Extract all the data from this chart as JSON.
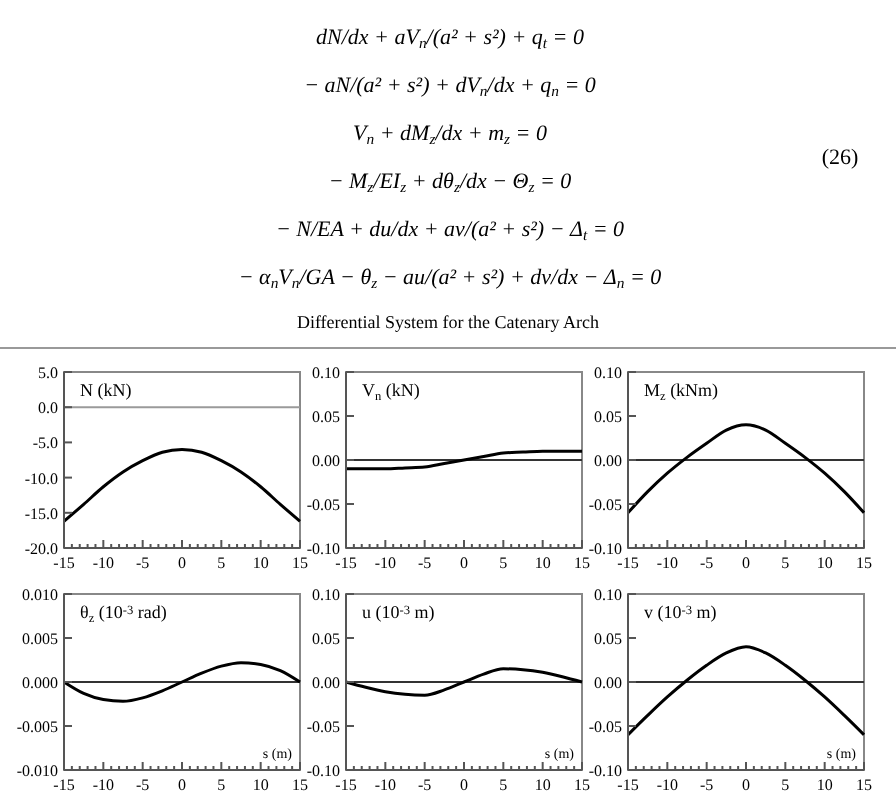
{
  "chart_data": [
    {
      "type": "other",
      "title": "Differential System for the Catenary Arch",
      "annotations": [
        "dN/dx + aV$_{n}$/(a² + s²) + q$_{t}$ = 0",
        "− aN/(a² + s²) + dV$_{n}$/dx + q$_{n}$ = 0",
        "V$_{n}$ + dM$_{z}$/dx + m$_{z}$ = 0",
        "− M$_{z}$/EI$_{z}$ + dθ$_{z}$/dx − Θ$_{z}$ = 0",
        "− N/EA + du/dx + av/(a² + s²) − Δ$_{t}$ = 0",
        "− α$_{n}$V$_{n}$/GA − θ$_{z}$ − au/(a² + s²) + dv/dx − Δ$_{n}$ = 0",
        "(26)"
      ]
    },
    {
      "type": "line",
      "ylabel": "N (kN)",
      "x": [
        -15,
        -12.5,
        -10,
        -7.5,
        -5,
        -2.5,
        0,
        2.5,
        5,
        7.5,
        10,
        12.5,
        15
      ],
      "series": [
        {
          "color": "#000000",
          "values": [
            -16.2,
            -13.8,
            -11.3,
            -9.2,
            -7.6,
            -6.4,
            -6.0,
            -6.4,
            -7.6,
            -9.2,
            -11.3,
            -13.8,
            -16.2
          ]
        }
      ],
      "xlim": [
        -15,
        15
      ],
      "ylim": [
        -20,
        5
      ],
      "xticks": [
        -15,
        {
          "value": -14,
          "label": null
        },
        {
          "value": -13,
          "label": null
        },
        {
          "value": -12,
          "label": null
        },
        {
          "value": -11,
          "label": null
        },
        -10,
        {
          "value": -9,
          "label": null
        },
        {
          "value": -8,
          "label": null
        },
        {
          "value": -7,
          "label": null
        },
        {
          "value": -6,
          "label": null
        },
        -5,
        {
          "value": -4,
          "label": null
        },
        {
          "value": -3,
          "label": null
        },
        {
          "value": -2,
          "label": null
        },
        {
          "value": -1,
          "label": null
        },
        0,
        {
          "value": 1,
          "label": null
        },
        {
          "value": 2,
          "label": null
        },
        {
          "value": 3,
          "label": null
        },
        {
          "value": 4,
          "label": null
        },
        5,
        {
          "value": 6,
          "label": null
        },
        {
          "value": 7,
          "label": null
        },
        {
          "value": 8,
          "label": null
        },
        {
          "value": 9,
          "label": null
        },
        10,
        {
          "value": 11,
          "label": null
        },
        {
          "value": 12,
          "label": null
        },
        {
          "value": 13,
          "label": null
        },
        {
          "value": 14,
          "label": null
        },
        15
      ],
      "yticks": [
        {
          "value": -20,
          "label": "-20.0"
        },
        {
          "value": -15,
          "label": "-15.0"
        },
        {
          "value": -10,
          "label": "-10.0"
        },
        {
          "value": -5,
          "label": "-5.0"
        },
        {
          "value": 0,
          "label": "0.0"
        },
        {
          "value": 5,
          "label": "5.0"
        }
      ],
      "ref_lines": [
        {
          "axis": "y",
          "value": 0,
          "color": "#9a9a9a"
        }
      ]
    },
    {
      "type": "line",
      "ylabel": "V$_{n}$ (kN)",
      "x": [
        -15,
        -12.5,
        -10,
        -7.5,
        -5,
        -2.5,
        0,
        2.5,
        5,
        7.5,
        10,
        12.5,
        15
      ],
      "series": [
        {
          "color": "#000000",
          "values": [
            -0.01,
            -0.01,
            -0.01,
            -0.009,
            -0.008,
            -0.004,
            0,
            0.004,
            0.008,
            0.009,
            0.01,
            0.01,
            0.01
          ]
        }
      ],
      "xlim": [
        -15,
        15
      ],
      "ylim": [
        -0.1,
        0.1
      ],
      "xticks": [
        -15,
        {
          "value": -14,
          "label": null
        },
        {
          "value": -13,
          "label": null
        },
        {
          "value": -12,
          "label": null
        },
        {
          "value": -11,
          "label": null
        },
        -10,
        {
          "value": -9,
          "label": null
        },
        {
          "value": -8,
          "label": null
        },
        {
          "value": -7,
          "label": null
        },
        {
          "value": -6,
          "label": null
        },
        -5,
        {
          "value": -4,
          "label": null
        },
        {
          "value": -3,
          "label": null
        },
        {
          "value": -2,
          "label": null
        },
        {
          "value": -1,
          "label": null
        },
        0,
        {
          "value": 1,
          "label": null
        },
        {
          "value": 2,
          "label": null
        },
        {
          "value": 3,
          "label": null
        },
        {
          "value": 4,
          "label": null
        },
        5,
        {
          "value": 6,
          "label": null
        },
        {
          "value": 7,
          "label": null
        },
        {
          "value": 8,
          "label": null
        },
        {
          "value": 9,
          "label": null
        },
        10,
        {
          "value": 11,
          "label": null
        },
        {
          "value": 12,
          "label": null
        },
        {
          "value": 13,
          "label": null
        },
        {
          "value": 14,
          "label": null
        },
        15
      ],
      "yticks": [
        {
          "value": -0.1,
          "label": "-0.10"
        },
        {
          "value": -0.05,
          "label": "-0.05"
        },
        {
          "value": 0,
          "label": "0.00"
        },
        {
          "value": 0.05,
          "label": "0.05"
        },
        {
          "value": 0.1,
          "label": "0.10"
        }
      ],
      "ref_lines": [
        {
          "axis": "y",
          "value": 0,
          "color": "#333333"
        }
      ]
    },
    {
      "type": "line",
      "ylabel": "M$_{z}$ (kNm)",
      "x": [
        -15,
        -12.5,
        -10,
        -7.5,
        -5,
        -2.5,
        0,
        2.5,
        5,
        7.5,
        10,
        12.5,
        15
      ],
      "series": [
        {
          "color": "#000000",
          "values": [
            -0.06,
            -0.036,
            -0.015,
            0.003,
            0.019,
            0.034,
            0.04,
            0.034,
            0.019,
            0.003,
            -0.015,
            -0.036,
            -0.06
          ]
        }
      ],
      "xlim": [
        -15,
        15
      ],
      "ylim": [
        -0.1,
        0.1
      ],
      "xticks": [
        -15,
        {
          "value": -14,
          "label": null
        },
        {
          "value": -13,
          "label": null
        },
        {
          "value": -12,
          "label": null
        },
        {
          "value": -11,
          "label": null
        },
        -10,
        {
          "value": -9,
          "label": null
        },
        {
          "value": -8,
          "label": null
        },
        {
          "value": -7,
          "label": null
        },
        {
          "value": -6,
          "label": null
        },
        -5,
        {
          "value": -4,
          "label": null
        },
        {
          "value": -3,
          "label": null
        },
        {
          "value": -2,
          "label": null
        },
        {
          "value": -1,
          "label": null
        },
        0,
        {
          "value": 1,
          "label": null
        },
        {
          "value": 2,
          "label": null
        },
        {
          "value": 3,
          "label": null
        },
        {
          "value": 4,
          "label": null
        },
        5,
        {
          "value": 6,
          "label": null
        },
        {
          "value": 7,
          "label": null
        },
        {
          "value": 8,
          "label": null
        },
        {
          "value": 9,
          "label": null
        },
        10,
        {
          "value": 11,
          "label": null
        },
        {
          "value": 12,
          "label": null
        },
        {
          "value": 13,
          "label": null
        },
        {
          "value": 14,
          "label": null
        },
        15
      ],
      "yticks": [
        {
          "value": -0.1,
          "label": "-0.10"
        },
        {
          "value": -0.05,
          "label": "-0.05"
        },
        {
          "value": 0,
          "label": "0.00"
        },
        {
          "value": 0.05,
          "label": "0.05"
        },
        {
          "value": 0.1,
          "label": "0.10"
        }
      ],
      "ref_lines": [
        {
          "axis": "y",
          "value": 0,
          "color": "#333333"
        }
      ]
    },
    {
      "type": "line",
      "ylabel": "θ$_{z}$ (10$^{-3}$ rad)",
      "xlabel": "s (m)",
      "x": [
        -15,
        -12.5,
        -10,
        -7.5,
        -5,
        -2.5,
        0,
        2.5,
        5,
        7.5,
        10,
        12.5,
        15
      ],
      "series": [
        {
          "color": "#000000",
          "values": [
            0,
            -0.0013,
            -0.002,
            -0.0022,
            -0.0018,
            -0.001,
            0,
            0.001,
            0.0018,
            0.0022,
            0.002,
            0.0013,
            0
          ]
        }
      ],
      "xlim": [
        -15,
        15
      ],
      "ylim": [
        -0.01,
        0.01
      ],
      "xticks": [
        -15,
        {
          "value": -14,
          "label": null
        },
        {
          "value": -13,
          "label": null
        },
        {
          "value": -12,
          "label": null
        },
        {
          "value": -11,
          "label": null
        },
        -10,
        {
          "value": -9,
          "label": null
        },
        {
          "value": -8,
          "label": null
        },
        {
          "value": -7,
          "label": null
        },
        {
          "value": -6,
          "label": null
        },
        -5,
        {
          "value": -4,
          "label": null
        },
        {
          "value": -3,
          "label": null
        },
        {
          "value": -2,
          "label": null
        },
        {
          "value": -1,
          "label": null
        },
        0,
        {
          "value": 1,
          "label": null
        },
        {
          "value": 2,
          "label": null
        },
        {
          "value": 3,
          "label": null
        },
        {
          "value": 4,
          "label": null
        },
        5,
        {
          "value": 6,
          "label": null
        },
        {
          "value": 7,
          "label": null
        },
        {
          "value": 8,
          "label": null
        },
        {
          "value": 9,
          "label": null
        },
        10,
        {
          "value": 11,
          "label": null
        },
        {
          "value": 12,
          "label": null
        },
        {
          "value": 13,
          "label": null
        },
        {
          "value": 14,
          "label": null
        },
        15
      ],
      "yticks": [
        {
          "value": -0.01,
          "label": "-0.010"
        },
        {
          "value": -0.005,
          "label": "-0.005"
        },
        {
          "value": 0,
          "label": "0.000"
        },
        {
          "value": 0.005,
          "label": "0.005"
        },
        {
          "value": 0.01,
          "label": "0.010"
        }
      ],
      "ref_lines": [
        {
          "axis": "y",
          "value": 0,
          "color": "#333333"
        }
      ]
    },
    {
      "type": "line",
      "ylabel": "u (10$^{-3}$ m)",
      "xlabel": "s (m)",
      "x": [
        -15,
        -12.5,
        -10,
        -7.5,
        -5,
        -2.5,
        0,
        2.5,
        5,
        7.5,
        10,
        12.5,
        15
      ],
      "series": [
        {
          "color": "#000000",
          "values": [
            0,
            -0.006,
            -0.011,
            -0.014,
            -0.015,
            -0.009,
            0,
            0.009,
            0.015,
            0.014,
            0.011,
            0.006,
            0
          ]
        }
      ],
      "xlim": [
        -15,
        15
      ],
      "ylim": [
        -0.1,
        0.1
      ],
      "xticks": [
        -15,
        {
          "value": -14,
          "label": null
        },
        {
          "value": -13,
          "label": null
        },
        {
          "value": -12,
          "label": null
        },
        {
          "value": -11,
          "label": null
        },
        -10,
        {
          "value": -9,
          "label": null
        },
        {
          "value": -8,
          "label": null
        },
        {
          "value": -7,
          "label": null
        },
        {
          "value": -6,
          "label": null
        },
        -5,
        {
          "value": -4,
          "label": null
        },
        {
          "value": -3,
          "label": null
        },
        {
          "value": -2,
          "label": null
        },
        {
          "value": -1,
          "label": null
        },
        0,
        {
          "value": 1,
          "label": null
        },
        {
          "value": 2,
          "label": null
        },
        {
          "value": 3,
          "label": null
        },
        {
          "value": 4,
          "label": null
        },
        5,
        {
          "value": 6,
          "label": null
        },
        {
          "value": 7,
          "label": null
        },
        {
          "value": 8,
          "label": null
        },
        {
          "value": 9,
          "label": null
        },
        10,
        {
          "value": 11,
          "label": null
        },
        {
          "value": 12,
          "label": null
        },
        {
          "value": 13,
          "label": null
        },
        {
          "value": 14,
          "label": null
        },
        15
      ],
      "yticks": [
        {
          "value": -0.1,
          "label": "-0.10"
        },
        {
          "value": -0.05,
          "label": "-0.05"
        },
        {
          "value": 0,
          "label": "0.00"
        },
        {
          "value": 0.05,
          "label": "0.05"
        },
        {
          "value": 0.1,
          "label": "0.10"
        }
      ],
      "ref_lines": [
        {
          "axis": "y",
          "value": 0,
          "color": "#333333"
        }
      ]
    },
    {
      "type": "line",
      "ylabel": "v (10$^{-3}$ m)",
      "xlabel": "s (m)",
      "x": [
        -15,
        -12.5,
        -10,
        -7.5,
        -5,
        -2.5,
        0,
        2.5,
        5,
        7.5,
        10,
        12.5,
        15
      ],
      "series": [
        {
          "color": "#000000",
          "values": [
            -0.06,
            -0.038,
            -0.017,
            0.002,
            0.019,
            0.033,
            0.04,
            0.033,
            0.019,
            0.002,
            -0.017,
            -0.038,
            -0.06
          ]
        }
      ],
      "xlim": [
        -15,
        15
      ],
      "ylim": [
        -0.1,
        0.1
      ],
      "xticks": [
        -15,
        {
          "value": -14,
          "label": null
        },
        {
          "value": -13,
          "label": null
        },
        {
          "value": -12,
          "label": null
        },
        {
          "value": -11,
          "label": null
        },
        -10,
        {
          "value": -9,
          "label": null
        },
        {
          "value": -8,
          "label": null
        },
        {
          "value": -7,
          "label": null
        },
        {
          "value": -6,
          "label": null
        },
        -5,
        {
          "value": -4,
          "label": null
        },
        {
          "value": -3,
          "label": null
        },
        {
          "value": -2,
          "label": null
        },
        {
          "value": -1,
          "label": null
        },
        0,
        {
          "value": 1,
          "label": null
        },
        {
          "value": 2,
          "label": null
        },
        {
          "value": 3,
          "label": null
        },
        {
          "value": 4,
          "label": null
        },
        5,
        {
          "value": 6,
          "label": null
        },
        {
          "value": 7,
          "label": null
        },
        {
          "value": 8,
          "label": null
        },
        {
          "value": 9,
          "label": null
        },
        10,
        {
          "value": 11,
          "label": null
        },
        {
          "value": 12,
          "label": null
        },
        {
          "value": 13,
          "label": null
        },
        {
          "value": 14,
          "label": null
        },
        15
      ],
      "yticks": [
        {
          "value": -0.1,
          "label": "-0.10"
        },
        {
          "value": -0.05,
          "label": "-0.05"
        },
        {
          "value": 0,
          "label": "0.00"
        },
        {
          "value": 0.05,
          "label": "0.05"
        },
        {
          "value": 0.1,
          "label": "0.10"
        }
      ],
      "ref_lines": [
        {
          "axis": "y",
          "value": 0,
          "color": "#333333"
        }
      ]
    }
  ]
}
